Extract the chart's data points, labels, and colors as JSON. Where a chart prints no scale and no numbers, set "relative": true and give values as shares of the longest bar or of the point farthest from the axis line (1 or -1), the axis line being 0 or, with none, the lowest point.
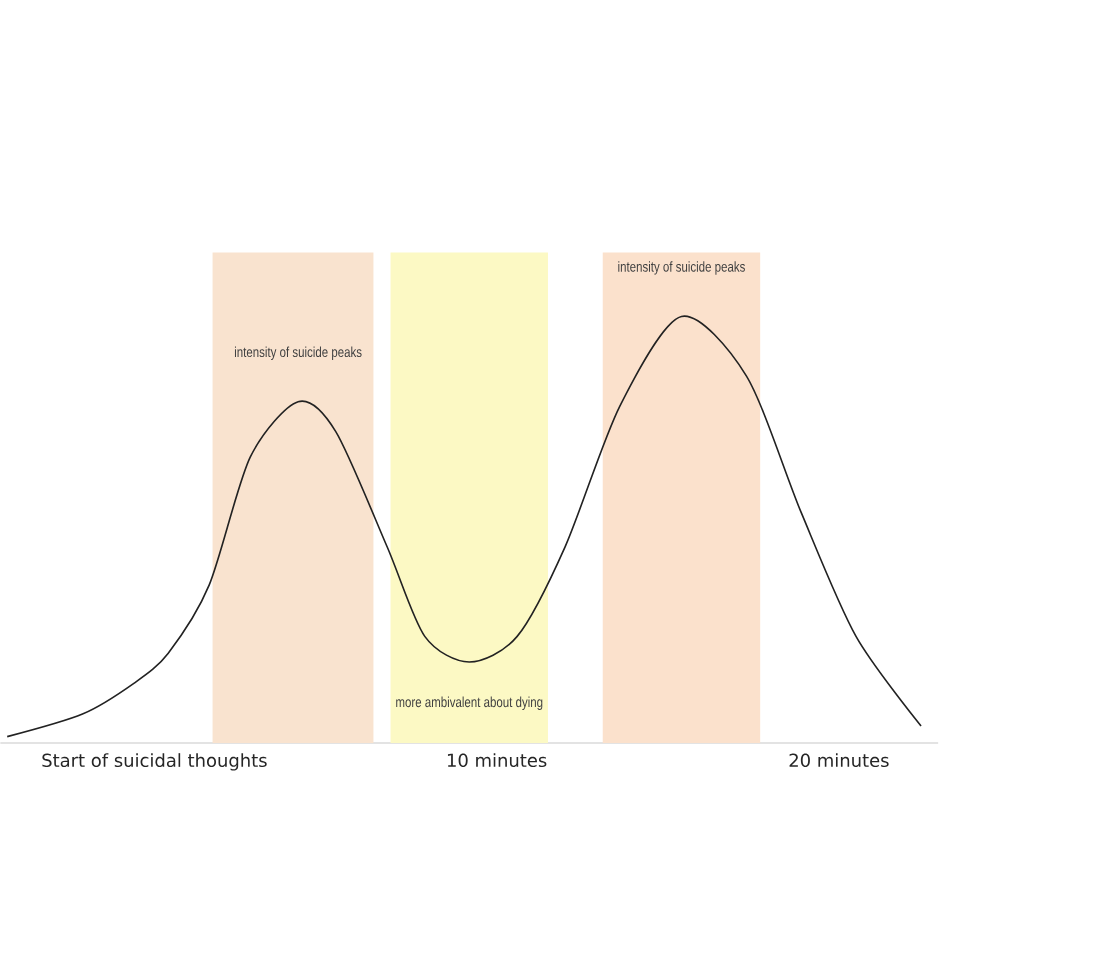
{
  "chart_data": {
    "type": "line",
    "relative": true,
    "color": "#222222",
    "line_style": "solid",
    "x": [
      -4.3,
      -2.1,
      -0.6,
      0.4,
      1.6,
      2.8,
      4.2,
      5.3,
      6.8,
      7.9,
      9.2,
      10.6,
      12.0,
      13.6,
      15.4,
      17.3,
      18.9,
      20.5,
      22.4
    ],
    "values": [
      0.015,
      0.068,
      0.14,
      0.21,
      0.37,
      0.67,
      0.8,
      0.73,
      0.46,
      0.25,
      0.19,
      0.25,
      0.46,
      0.79,
      1,
      0.86,
      0.54,
      0.25,
      0.04
    ],
    "xlim": [
      -4.5,
      22.9
    ],
    "xticks": [
      {
        "value": 0,
        "label": "Start of suicidal thoughts"
      },
      {
        "value": 10,
        "label": "10 minutes"
      },
      {
        "value": 20,
        "label": "20 minutes"
      }
    ],
    "bands": [
      {
        "axis": "x",
        "from": 1.7,
        "to": 6.4,
        "color": "#f9e3cf"
      },
      {
        "axis": "x",
        "from": 6.9,
        "to": 11.5,
        "color": "#fcf9c4"
      },
      {
        "axis": "x",
        "from": 13.1,
        "to": 17.7,
        "color": "#fbe1cc"
      }
    ],
    "annotations": [
      {
        "text": "intensity of suicide peaks",
        "x": 4.2,
        "y": 0.8
      },
      {
        "text": "more ambivalent about dying",
        "x": 9.2,
        "y": 0.19
      },
      {
        "text": "intensity of suicide peaks",
        "x": 15.4,
        "y": 1
      }
    ]
  }
}
